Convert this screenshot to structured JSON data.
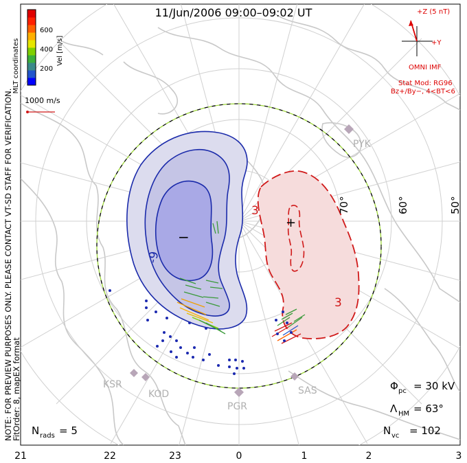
{
  "title": "11/Jun/2006 09:00–09:02 UT",
  "color_scale": {
    "label": "Vel [m/s]",
    "ticks": [
      "600",
      "400",
      "200"
    ],
    "colors": [
      "#0000ff",
      "#2255cc",
      "#3a8a8a",
      "#3cb03c",
      "#7fd000",
      "#e6e600",
      "#ffb000",
      "#ff6000",
      "#ff2000",
      "#e00000"
    ]
  },
  "coord_label": "MLT coordinates",
  "reference_vector_label": "1000 m/s",
  "imf": {
    "z_label": "+Z (5 nT)",
    "y_label": "+Y",
    "source": "OMNI IMF",
    "model_line1": "Stat Mod: RG96",
    "model_line2": "Bz+/By−, 4<BT<6",
    "color": "#dd0000"
  },
  "side_note_line1": "NOTE: FOR PREVIEW PURPOSES ONLY. PLEASE CONTACT VT-SD STAFF FOR VERIFICATION.",
  "side_note_line2": "FitOrder: 8, mapEX format",
  "latitude_labels": [
    "70°",
    "60°",
    "50°"
  ],
  "stations": [
    "PYK",
    "KSR",
    "KOD",
    "PGR",
    "SAS"
  ],
  "contour_labels": {
    "negative": [
      "-9"
    ],
    "positive": [
      "3",
      "3"
    ],
    "min_marker": "−",
    "max_marker": "+"
  },
  "stats": {
    "phi_pc_symbol": "Φ",
    "phi_pc_sub": "pc",
    "phi_pc_value": "= 30 kV",
    "lambda_hm_symbol": "Λ",
    "lambda_hm_sub": "HM",
    "lambda_hm_value": "= 63°",
    "n_vc_symbol": "N",
    "n_vc_sub": "vc",
    "n_vc_value": "= 102",
    "n_rads_symbol": "N",
    "n_rads_sub": "rads",
    "n_rads_value": "= 5"
  },
  "mlt_axis": [
    "21",
    "22",
    "23",
    "0",
    "1",
    "2",
    "3"
  ]
}
